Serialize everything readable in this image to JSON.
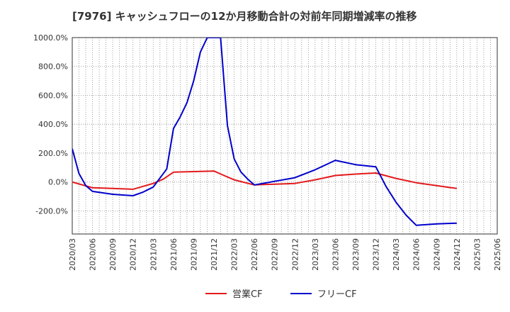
{
  "chart_data": {
    "type": "line",
    "title": "[7976]  キャッシュフローの12か月移動合計の対前年同期増減率の推移",
    "xlabel": "",
    "ylabel": "",
    "ylim": [
      -360,
      1000
    ],
    "y_ticks": [
      1000,
      800,
      600,
      400,
      200,
      0,
      -200
    ],
    "y_tick_labels": [
      "1000.0%",
      "800.0%",
      "600.0%",
      "400.0%",
      "200.0%",
      "0.0%",
      "-200.0%"
    ],
    "x_tick_labels": [
      "2020/03",
      "2020/06",
      "2020/09",
      "2020/12",
      "2021/03",
      "2021/06",
      "2021/09",
      "2021/12",
      "2022/03",
      "2022/06",
      "2022/09",
      "2022/12",
      "2023/03",
      "2023/06",
      "2023/09",
      "2023/12",
      "2024/03",
      "2024/06",
      "2024/09",
      "2024/12",
      "2025/03",
      "2025/06"
    ],
    "grid": true,
    "legend_position": "bottom",
    "series": [
      {
        "name": "営業CF",
        "color": "#e31a1c",
        "points": [
          [
            0,
            0
          ],
          [
            1,
            -40
          ],
          [
            2,
            -45
          ],
          [
            3,
            -50
          ],
          [
            4,
            -10
          ],
          [
            4.5,
            20
          ],
          [
            5,
            68
          ],
          [
            6,
            72
          ],
          [
            7,
            76
          ],
          [
            7.5,
            45
          ],
          [
            8,
            15
          ],
          [
            9,
            -20
          ],
          [
            10,
            -15
          ],
          [
            11,
            -10
          ],
          [
            12,
            15
          ],
          [
            13,
            45
          ],
          [
            14,
            55
          ],
          [
            15,
            62
          ],
          [
            16,
            25
          ],
          [
            17,
            -5
          ],
          [
            18,
            -25
          ],
          [
            19,
            -45
          ]
        ]
      },
      {
        "name": "フリーCF",
        "color": "#0000cc",
        "points": [
          [
            0,
            230
          ],
          [
            0.33,
            60
          ],
          [
            0.67,
            -25
          ],
          [
            1,
            -65
          ],
          [
            2,
            -85
          ],
          [
            3,
            -95
          ],
          [
            3.5,
            -70
          ],
          [
            4,
            -35
          ],
          [
            4.67,
            90
          ],
          [
            5,
            370
          ],
          [
            5.33,
            450
          ],
          [
            5.67,
            550
          ],
          [
            6,
            700
          ],
          [
            6.33,
            900
          ],
          [
            6.67,
            1000
          ],
          [
            7.33,
            1000
          ],
          [
            7.67,
            390
          ],
          [
            8,
            160
          ],
          [
            8.33,
            70
          ],
          [
            8.67,
            20
          ],
          [
            9,
            -20
          ],
          [
            10,
            5
          ],
          [
            11,
            30
          ],
          [
            12,
            85
          ],
          [
            13,
            150
          ],
          [
            14,
            120
          ],
          [
            15,
            105
          ],
          [
            15.5,
            -30
          ],
          [
            16,
            -140
          ],
          [
            16.5,
            -230
          ],
          [
            17,
            -300
          ],
          [
            18,
            -290
          ],
          [
            19,
            -285
          ]
        ]
      }
    ]
  }
}
